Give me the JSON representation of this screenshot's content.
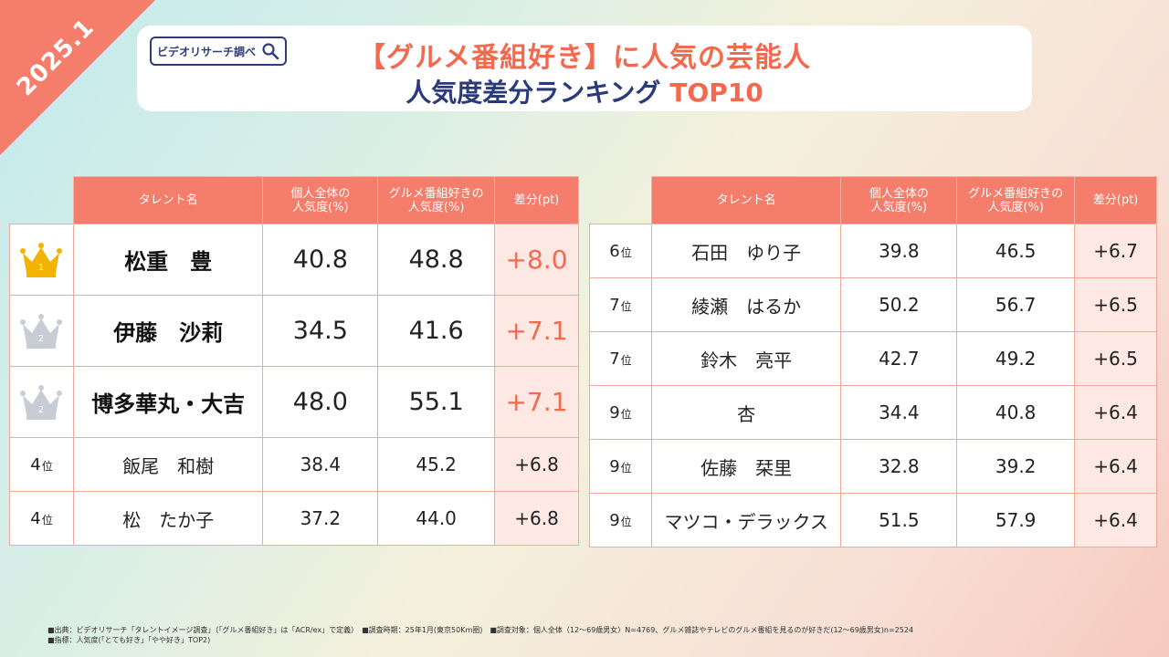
{
  "corner": "2025.1",
  "logo": {
    "text": "ビデオリサーチ調べ"
  },
  "title": {
    "line1": "【グルメ番組好き】に人気の芸能人",
    "line2": "人気度差分ランキング",
    "line2_accent": "TOP10"
  },
  "colors": {
    "accent": "#f47d6b",
    "navy": "#2b3a7a",
    "diff_bg": "#fde8e4",
    "gold": "#f2b400",
    "silver": "#c8ccd4"
  },
  "chart_data": {
    "type": "table",
    "columns": [
      "タレント名",
      "個人全体の人気度(%)",
      "グルメ番組好きの人気度(%)",
      "差分(pt)"
    ],
    "left": {
      "headers": {
        "name": "タレント名",
        "overall": "個人全体の\n人気度(%)",
        "gourmet": "グルメ番組好きの\n人気度(%)",
        "diff": "差分(pt)"
      },
      "rows": [
        {
          "rank": "1",
          "crown": "gold-crown",
          "name": "松重　豊",
          "overall": "40.8",
          "gourmet": "48.8",
          "diff": "+8.0"
        },
        {
          "rank": "2",
          "crown": "silver-crown",
          "name": "伊藤　沙莉",
          "overall": "34.5",
          "gourmet": "41.6",
          "diff": "+7.1"
        },
        {
          "rank": "2",
          "crown": "silver-crown",
          "name": "博多華丸・大吉",
          "overall": "48.0",
          "gourmet": "55.1",
          "diff": "+7.1"
        },
        {
          "rank": "4",
          "unit": "位",
          "name": "飯尾　和樹",
          "overall": "38.4",
          "gourmet": "45.2",
          "diff": "+6.8"
        },
        {
          "rank": "4",
          "unit": "位",
          "name": "松　たか子",
          "overall": "37.2",
          "gourmet": "44.0",
          "diff": "+6.8"
        }
      ]
    },
    "right": {
      "headers": {
        "name": "タレント名",
        "overall": "個人全体の\n人気度(%)",
        "gourmet": "グルメ番組好きの\n人気度(%)",
        "diff": "差分(pt)"
      },
      "rows": [
        {
          "rank": "6",
          "unit": "位",
          "name": "石田　ゆり子",
          "overall": "39.8",
          "gourmet": "46.5",
          "diff": "+6.7"
        },
        {
          "rank": "7",
          "unit": "位",
          "name": "綾瀬　はるか",
          "overall": "50.2",
          "gourmet": "56.7",
          "diff": "+6.5"
        },
        {
          "rank": "7",
          "unit": "位",
          "name": "鈴木　亮平",
          "overall": "42.7",
          "gourmet": "49.2",
          "diff": "+6.5"
        },
        {
          "rank": "9",
          "unit": "位",
          "name": "杏",
          "overall": "34.4",
          "gourmet": "40.8",
          "diff": "+6.4"
        },
        {
          "rank": "9",
          "unit": "位",
          "name": "佐藤　栞里",
          "overall": "32.8",
          "gourmet": "39.2",
          "diff": "+6.4"
        },
        {
          "rank": "9",
          "unit": "位",
          "name": "マツコ・デラックス",
          "overall": "51.5",
          "gourmet": "57.9",
          "diff": "+6.4"
        }
      ]
    }
  },
  "footnote": {
    "line1": "■出典：ビデオリサーチ「タレントイメージ調査」（「グルメ番組好き」は「ACR/ex」で定義）　■調査時期：25年1月(東京50Km圏)　■調査対象：個人全体（12～69歳男女）N=4769、グルメ雑誌やテレビのグルメ番組を見るのが好きだ(12～69歳男女)n=2524",
    "line2": "■指標：人気度(「とても好き」「やや好き」TOP2)"
  }
}
